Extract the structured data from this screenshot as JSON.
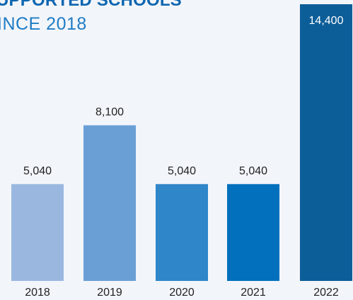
{
  "chart_data": {
    "type": "bar",
    "title": "UPPORTED SCHOOLS",
    "subtitle": "INCE 2018",
    "categories": [
      "2018",
      "2019",
      "2020",
      "2021",
      "2022"
    ],
    "values": [
      5040,
      8100,
      5040,
      5040,
      14400
    ],
    "value_labels": [
      "5,040",
      "8,100",
      "5,040",
      "5,040",
      "14,400"
    ],
    "ylim": [
      0,
      14400
    ],
    "colors": [
      "#9ab8df",
      "#6a9fd6",
      "#2f86c9",
      "#0270bd",
      "#0c5e99"
    ],
    "label_colors": [
      "#222222",
      "#222222",
      "#222222",
      "#222222",
      "#ffffff"
    ],
    "xlabel": "",
    "ylabel": "",
    "grid": false,
    "legend": "none"
  }
}
